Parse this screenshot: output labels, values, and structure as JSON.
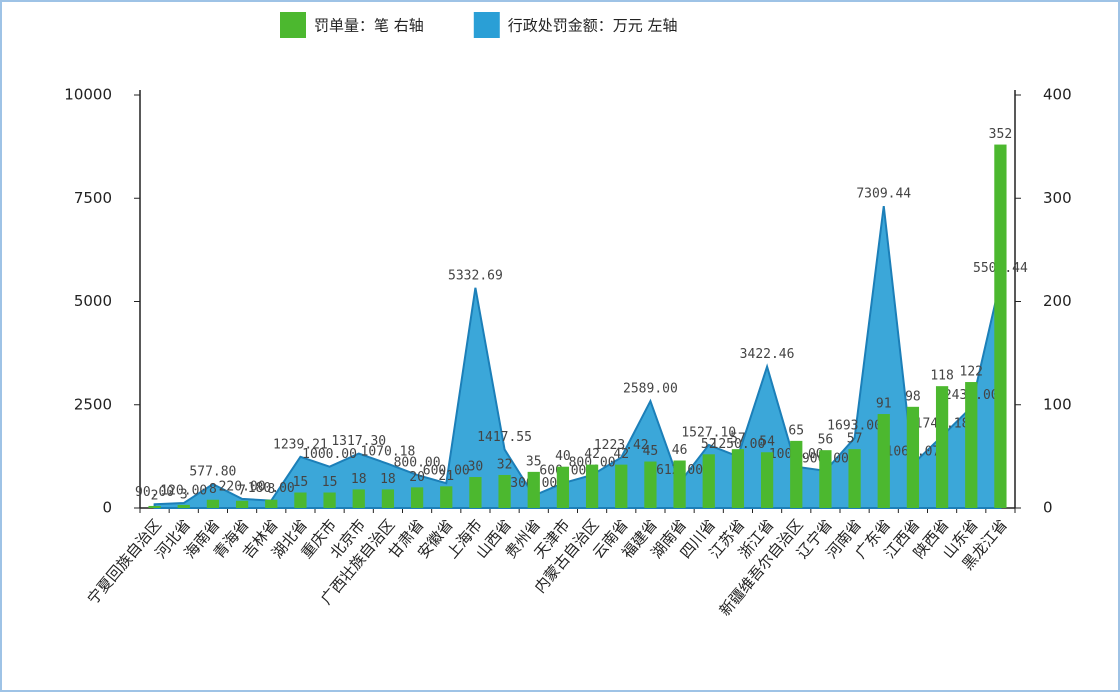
{
  "chart_data": {
    "type": "bar-area",
    "categories": [
      "宁夏回族自治区",
      "河北省",
      "海南省",
      "青海省",
      "吉林省",
      "湖北省",
      "重庆市",
      "北京市",
      "广西壮族自治区",
      "甘肃省",
      "安徽省",
      "上海市",
      "山西省",
      "贵州省",
      "天津市",
      "内蒙古自治区",
      "云南省",
      "福建省",
      "湖南省",
      "四川省",
      "江苏省",
      "浙江省",
      "新疆维吾尔自治区",
      "辽宁省",
      "河南省",
      "广东省",
      "江西省",
      "陕西省",
      "山东省",
      "黑龙江省"
    ],
    "series": [
      {
        "name": "罚单量：笔 右轴",
        "color": "#4cb82f",
        "axis": "y2",
        "type": "bar",
        "values": [
          2,
          3,
          8,
          7,
          8,
          15,
          15,
          18,
          18,
          20,
          21,
          30,
          32,
          35,
          40,
          42,
          42,
          45,
          46,
          52,
          57,
          54,
          65,
          56,
          57,
          91,
          98,
          118,
          122,
          352
        ]
      },
      {
        "name": "行政处罚金额：万元 左轴",
        "color": "#2a9fd6",
        "axis": "y",
        "type": "area",
        "values": [
          90,
          120,
          577.8,
          220,
          180,
          1239.21,
          1000,
          1317.3,
          1070.18,
          800,
          600,
          5332.69,
          1417.55,
          300,
          600,
          800,
          1223.42,
          2589,
          612,
          1527.1,
          1250,
          3422.46,
          1000,
          900,
          1693,
          7309.44,
          1061.07,
          1742.18,
          2437,
          5503.44
        ],
        "value_labels": [
          "90.00",
          "120.00",
          "577.80",
          "220.00",
          "180.00",
          "1239.21",
          "1000.00",
          "1317.30",
          "1070.18",
          "800.00",
          "600.00",
          "5332.69",
          "1417.55",
          "300.00",
          "600.00",
          "800.00",
          "1223.42",
          "2589.00",
          "612.00",
          "1527.10",
          "1250.00",
          "3422.46",
          "1000.00",
          "900.00",
          "1693.00",
          "7309.44",
          "1061.07",
          "1742.18",
          "2437.00",
          "5503.44"
        ]
      }
    ],
    "ylim": [
      0,
      10000
    ],
    "yticks": [
      0,
      2500,
      5000,
      7500,
      10000
    ],
    "y2lim": [
      0,
      400
    ],
    "y2ticks": [
      0,
      100,
      200,
      300,
      400
    ],
    "legend": "top"
  }
}
